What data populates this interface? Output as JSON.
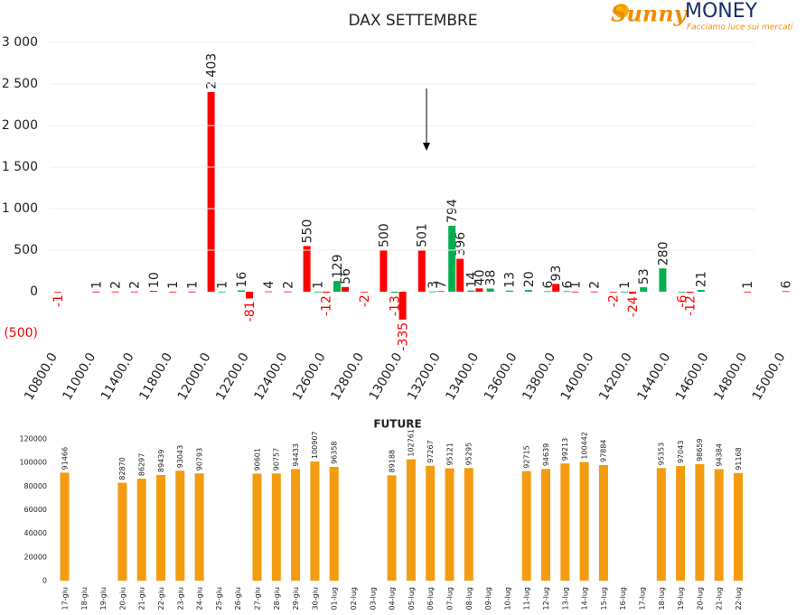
{
  "logo": {
    "sunny": "Sunny",
    "money": "MONEY",
    "tagline": "Facciamo luce sui mercati"
  },
  "chart_data": [
    {
      "type": "bar",
      "title": "DAX SETTEMBRE",
      "categories": [
        "10800.0",
        null,
        "11000.0",
        null,
        "11400.0",
        null,
        "11800.0",
        null,
        "12000.0",
        null,
        "12200.0",
        null,
        "12400.0",
        null,
        "12600.0",
        null,
        "12800.0",
        null,
        "13000.0",
        null,
        "13200.0",
        null,
        "13400.0",
        null,
        "13600.0",
        null,
        "13800.0",
        null,
        "14000.0",
        null,
        "14200.0",
        null,
        "14400.0",
        null,
        "14600.0",
        null,
        "14800.0",
        null,
        "15000.0"
      ],
      "series": [
        {
          "color": "#00b050",
          "values": [
            null,
            null,
            null,
            null,
            null,
            null,
            null,
            null,
            null,
            1,
            16,
            null,
            null,
            null,
            1,
            129,
            null,
            null,
            -13,
            null,
            3,
            794,
            14,
            38,
            13,
            20,
            6,
            6,
            null,
            null,
            1,
            53,
            280,
            -6,
            21,
            null,
            null,
            null,
            null
          ]
        },
        {
          "color": "#ff0000",
          "values": [
            -1,
            null,
            1,
            2,
            2,
            10,
            1,
            1,
            2403,
            null,
            -81,
            4,
            2,
            550,
            -12,
            56,
            -2,
            500,
            -335,
            501,
            7,
            396,
            40,
            null,
            null,
            null,
            93,
            1,
            2,
            -2,
            -24,
            null,
            null,
            -12,
            null,
            null,
            1,
            null,
            6
          ],
          "value_labels": [
            "-1",
            null,
            "1",
            "2",
            "2",
            "10",
            "1",
            "1",
            "2 403",
            null,
            "-81",
            "4",
            "2",
            "550",
            "-12",
            "56",
            "-2",
            "500",
            "-335",
            "501",
            "7",
            "396",
            "40",
            null,
            null,
            null,
            "93",
            "1",
            "2",
            "-2",
            "-24",
            null,
            null,
            "-12",
            null,
            null,
            "1",
            null,
            "6"
          ]
        }
      ],
      "ylim": [
        -500,
        3000
      ],
      "yticks": [
        {
          "value": -500,
          "label": "(500)"
        },
        0,
        500,
        {
          "value": 1000,
          "label": "1 000"
        },
        {
          "value": 1500,
          "label": "1 500"
        },
        {
          "value": 2000,
          "label": "2 000"
        },
        {
          "value": 2500,
          "label": "2 500"
        },
        {
          "value": 3000,
          "label": "3 000"
        }
      ],
      "grid": true
    },
    {
      "type": "bar",
      "title": "FUTURE",
      "categories": [
        "17-giu",
        "18-giu",
        "19-giu",
        "20-giu",
        "21-giu",
        "22-giu",
        "23-giu",
        "24-giu",
        "25-giu",
        "26-giu",
        "27-giu",
        "28-giu",
        "29-giu",
        "30-giu",
        "01-lug",
        "02-lug",
        "03-lug",
        "04-lug",
        "05-lug",
        "06-lug",
        "07-lug",
        "08-lug",
        "09-lug",
        "10-lug",
        "11-lug",
        "12-lug",
        "13-lug",
        "14-lug",
        "15-lug",
        "16-lug",
        "17-lug",
        "18-lug",
        "19-lug",
        "20-lug",
        "21-lug",
        "22-lug"
      ],
      "series": [
        {
          "color": "#f39c12",
          "values": [
            91466,
            null,
            null,
            82870,
            86297,
            89439,
            93043,
            90793,
            null,
            null,
            90601,
            90757,
            94433,
            100907,
            96358,
            null,
            null,
            89188,
            102761,
            97267,
            95121,
            95295,
            null,
            null,
            92715,
            94639,
            99213,
            100442,
            97884,
            null,
            null,
            95353,
            97043,
            98659,
            94384,
            91168
          ]
        }
      ],
      "ylim": [
        0,
        120000
      ],
      "yticks": [
        0,
        20000,
        40000,
        60000,
        80000,
        100000,
        120000
      ],
      "grid": false
    }
  ]
}
